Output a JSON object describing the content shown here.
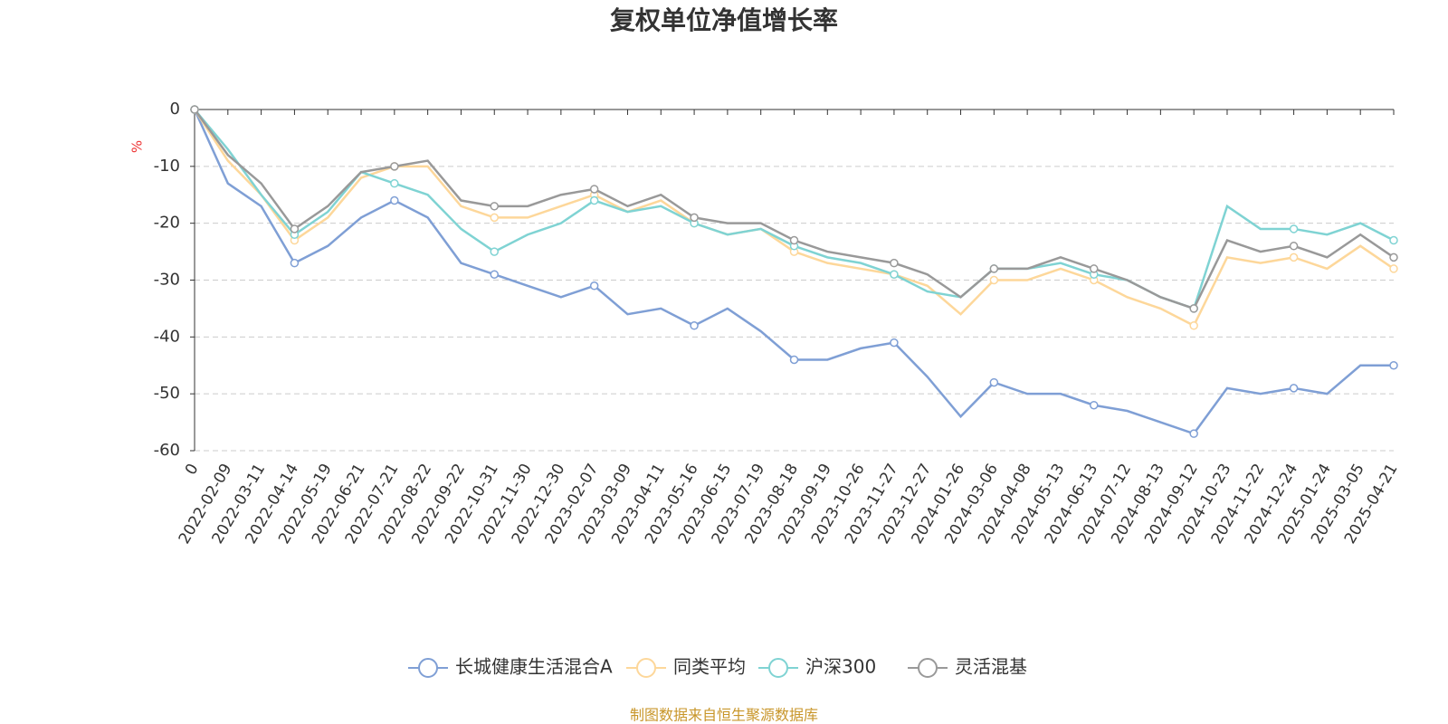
{
  "chart_data": {
    "type": "line",
    "title": "复权单位净值增长率",
    "y_label": "%",
    "source": "制图数据来自恒生聚源数据库",
    "categories": [
      "0",
      "2022-02-09",
      "2022-03-11",
      "2022-04-14",
      "2022-05-19",
      "2022-06-21",
      "2022-07-21",
      "2022-08-22",
      "2022-09-22",
      "2022-10-31",
      "2022-11-30",
      "2022-12-30",
      "2023-02-07",
      "2023-03-09",
      "2023-04-11",
      "2023-05-16",
      "2023-06-15",
      "2023-07-19",
      "2023-08-18",
      "2023-09-19",
      "2023-10-26",
      "2023-11-27",
      "2023-12-27",
      "2024-01-26",
      "2024-03-06",
      "2024-04-08",
      "2024-05-13",
      "2024-06-13",
      "2024-07-12",
      "2024-08-13",
      "2024-09-12",
      "2024-10-23",
      "2024-11-22",
      "2024-12-24",
      "2025-01-24",
      "2025-03-05",
      "2025-04-21"
    ],
    "series": [
      {
        "name": "长城健康生活混合A",
        "color": "#7f9fd5",
        "values": [
          0,
          -13,
          -17,
          -27,
          -24,
          -19,
          -16,
          -19,
          -27,
          -29,
          -31,
          -33,
          -31,
          -36,
          -35,
          -38,
          -35,
          -39,
          -44,
          -44,
          -42,
          -41,
          -47,
          -54,
          -48,
          -50,
          -50,
          -52,
          -53,
          -55,
          -57,
          -49,
          -50,
          -49,
          -50,
          -45,
          -45
        ]
      },
      {
        "name": "同类平均",
        "color": "#fdd79a",
        "values": [
          0,
          -9,
          -15,
          -23,
          -19,
          -12,
          -10,
          -10,
          -17,
          -19,
          -19,
          -17,
          -15,
          -18,
          -16,
          -20,
          -22,
          -21,
          -25,
          -27,
          -28,
          -29,
          -31,
          -36,
          -30,
          -30,
          -28,
          -30,
          -33,
          -35,
          -38,
          -26,
          -27,
          -26,
          -28,
          -24,
          -28
        ]
      },
      {
        "name": "沪深300",
        "color": "#7fd3d3",
        "values": [
          0,
          -7,
          -15,
          -22,
          -18,
          -11,
          -13,
          -15,
          -21,
          -25,
          -22,
          -20,
          -16,
          -18,
          -17,
          -20,
          -22,
          -21,
          -24,
          -26,
          -27,
          -29,
          -32,
          -33,
          -28,
          -28,
          -27,
          -29,
          -30,
          -33,
          -35,
          -17,
          -21,
          -21,
          -22,
          -20,
          -23
        ]
      },
      {
        "name": "灵活混基",
        "color": "#999999",
        "values": [
          0,
          -8,
          -13,
          -21,
          -17,
          -11,
          -10,
          -9,
          -16,
          -17,
          -17,
          -15,
          -14,
          -17,
          -15,
          -19,
          -20,
          -20,
          -23,
          -25,
          -26,
          -27,
          -29,
          -33,
          -28,
          -28,
          -26,
          -28,
          -30,
          -33,
          -35,
          -23,
          -25,
          -24,
          -26,
          -22,
          -26
        ]
      }
    ],
    "ylim": [
      -60,
      0
    ],
    "yticks": [
      0,
      -10,
      -20,
      -30,
      -40,
      -50,
      -60
    ],
    "grid": true
  }
}
